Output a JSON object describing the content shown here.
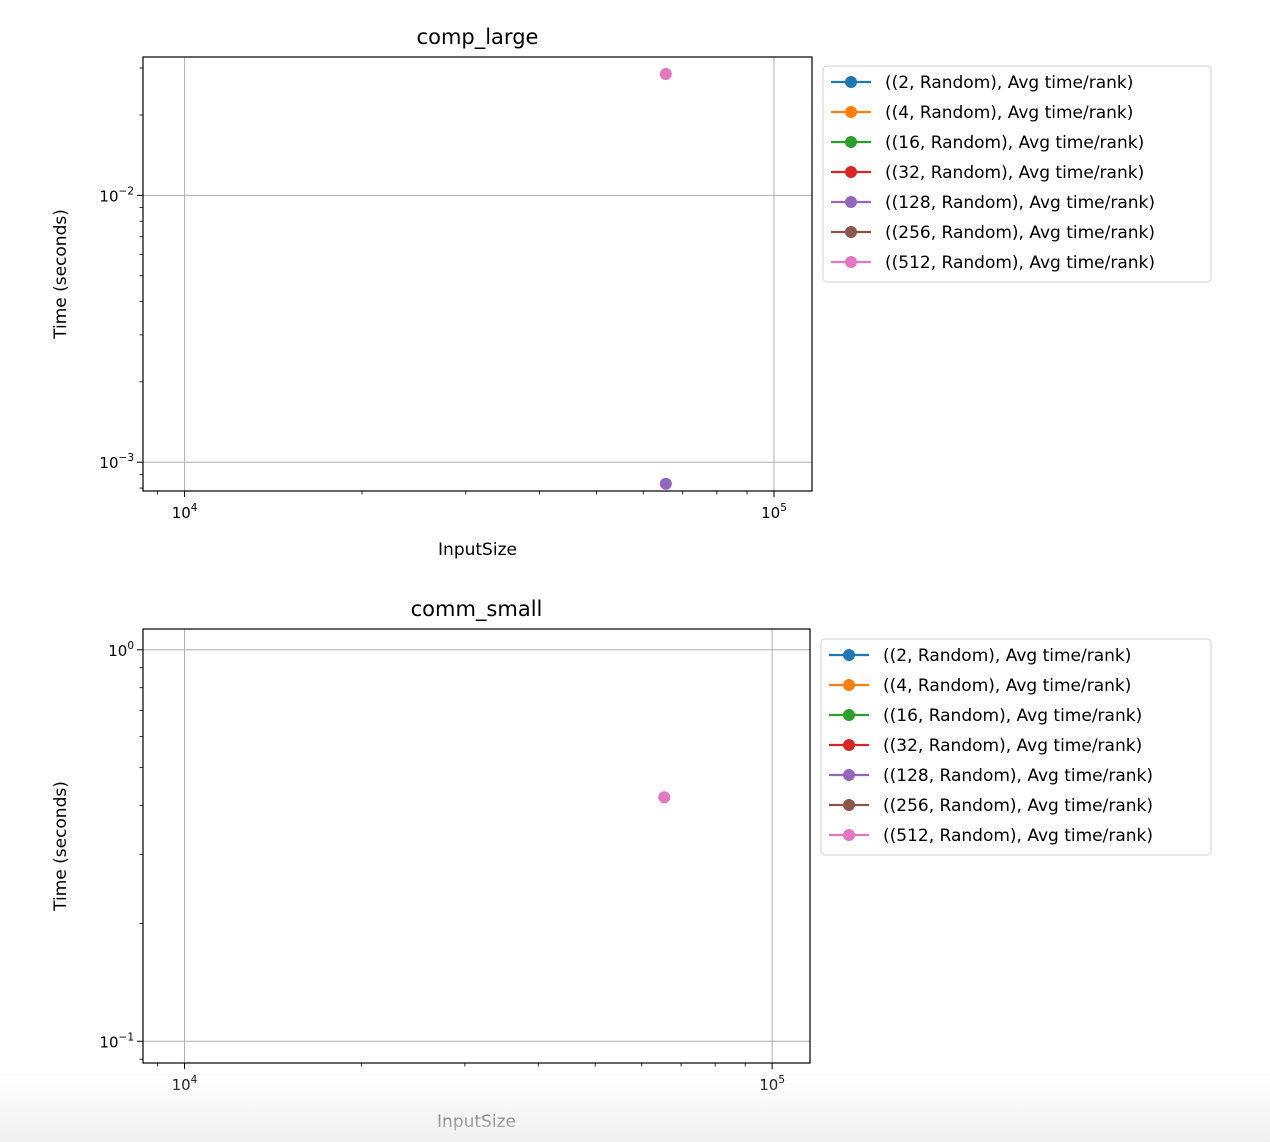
{
  "chart_data": [
    {
      "type": "scatter",
      "title": "comp_large",
      "xlabel": "InputSize",
      "ylabel": "Time (seconds)",
      "xscale": "log",
      "yscale": "log",
      "xlim": [
        8500,
        116000
      ],
      "ylim": [
        0.00078,
        0.033
      ],
      "x_ticks": [
        {
          "value": 10000,
          "label": "10^4"
        },
        {
          "value": 100000,
          "label": "10^5"
        }
      ],
      "y_ticks": [
        {
          "value": 0.001,
          "label": "10^−3"
        },
        {
          "value": 0.01,
          "label": "10^−2"
        }
      ],
      "grid": true,
      "legend_position": "outside-right-top",
      "series": [
        {
          "name": "((2, Random), Avg time/rank)",
          "color": "#1f77b4",
          "points": []
        },
        {
          "name": "((4, Random), Avg time/rank)",
          "color": "#ff7f0e",
          "points": []
        },
        {
          "name": "((16, Random), Avg time/rank)",
          "color": "#2ca02c",
          "points": []
        },
        {
          "name": "((32, Random), Avg time/rank)",
          "color": "#d62728",
          "points": []
        },
        {
          "name": "((128, Random), Avg time/rank)",
          "color": "#9467bd",
          "points": [
            [
              65536,
              0.00083
            ]
          ]
        },
        {
          "name": "((256, Random), Avg time/rank)",
          "color": "#8c564b",
          "points": []
        },
        {
          "name": "((512, Random), Avg time/rank)",
          "color": "#e377c2",
          "points": [
            [
              65536,
              0.0285
            ]
          ]
        }
      ]
    },
    {
      "type": "scatter",
      "title": "comm_small",
      "xlabel": "InputSize",
      "ylabel": "Time (seconds)",
      "xscale": "log",
      "yscale": "log",
      "xlim": [
        8500,
        116000
      ],
      "ylim": [
        0.088,
        1.13
      ],
      "x_ticks": [
        {
          "value": 10000,
          "label": "10^4"
        },
        {
          "value": 100000,
          "label": "10^5"
        }
      ],
      "y_ticks": [
        {
          "value": 0.1,
          "label": "10^−1"
        },
        {
          "value": 1,
          "label": "10^0"
        }
      ],
      "grid": true,
      "legend_position": "outside-right-top",
      "series": [
        {
          "name": "((2, Random), Avg time/rank)",
          "color": "#1f77b4",
          "points": []
        },
        {
          "name": "((4, Random), Avg time/rank)",
          "color": "#ff7f0e",
          "points": []
        },
        {
          "name": "((16, Random), Avg time/rank)",
          "color": "#2ca02c",
          "points": []
        },
        {
          "name": "((32, Random), Avg time/rank)",
          "color": "#d62728",
          "points": []
        },
        {
          "name": "((128, Random), Avg time/rank)",
          "color": "#9467bd",
          "points": []
        },
        {
          "name": "((256, Random), Avg time/rank)",
          "color": "#8c564b",
          "points": []
        },
        {
          "name": "((512, Random), Avg time/rank)",
          "color": "#e377c2",
          "points": [
            [
              65536,
              0.42
            ]
          ]
        }
      ]
    }
  ]
}
